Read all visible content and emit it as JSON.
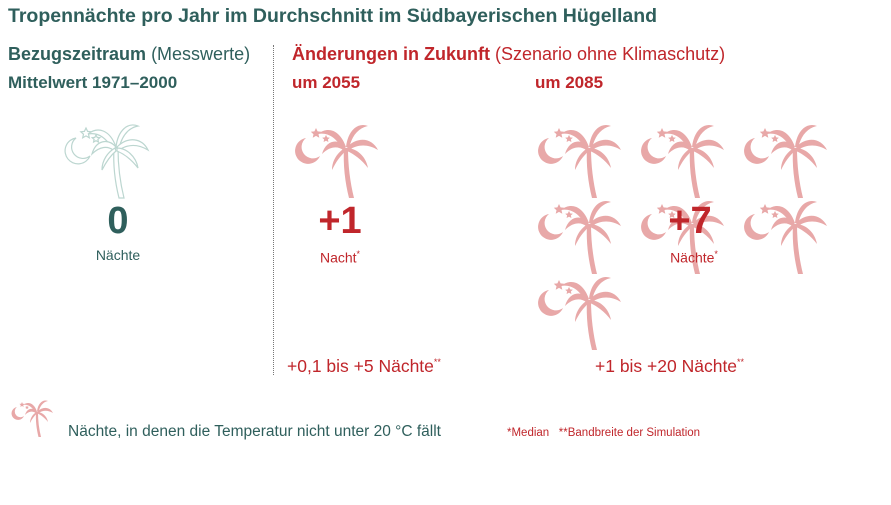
{
  "title": "Tropennächte pro Jahr im Durchschnitt im Südbayerischen Hügelland",
  "reference": {
    "heading_bold": "Bezugszeitraum",
    "heading_light": "(Messwerte)",
    "period": "Mittelwert 1971–2000",
    "value": "0",
    "unit": "Nächte"
  },
  "future": {
    "heading_bold": "Änderungen in Zukunft",
    "heading_light": "(Szenario ohne Klimaschutz)",
    "p2055": {
      "label": "um 2055",
      "value": "+1",
      "unit": "Nacht",
      "unit_mark": "*",
      "range": "+0,1 bis +5 Nächte",
      "range_mark": "**"
    },
    "p2085": {
      "label": "um 2085",
      "value": "+7",
      "unit": "Nächte",
      "unit_mark": "*",
      "range": "+1 bis +20 Nächte",
      "range_mark": "**"
    }
  },
  "legend": {
    "icon": "palm-moon-icon",
    "text": "Nächte, in denen die Temperatur nicht unter 20 °C fällt"
  },
  "footnotes": "*Median   **Bandbreite der Simulation",
  "colors": {
    "teal": "#2f5f5c",
    "red": "#c0262b",
    "palm_pink": "#e8a8a8",
    "palm_outline": "#bcd6d0"
  }
}
